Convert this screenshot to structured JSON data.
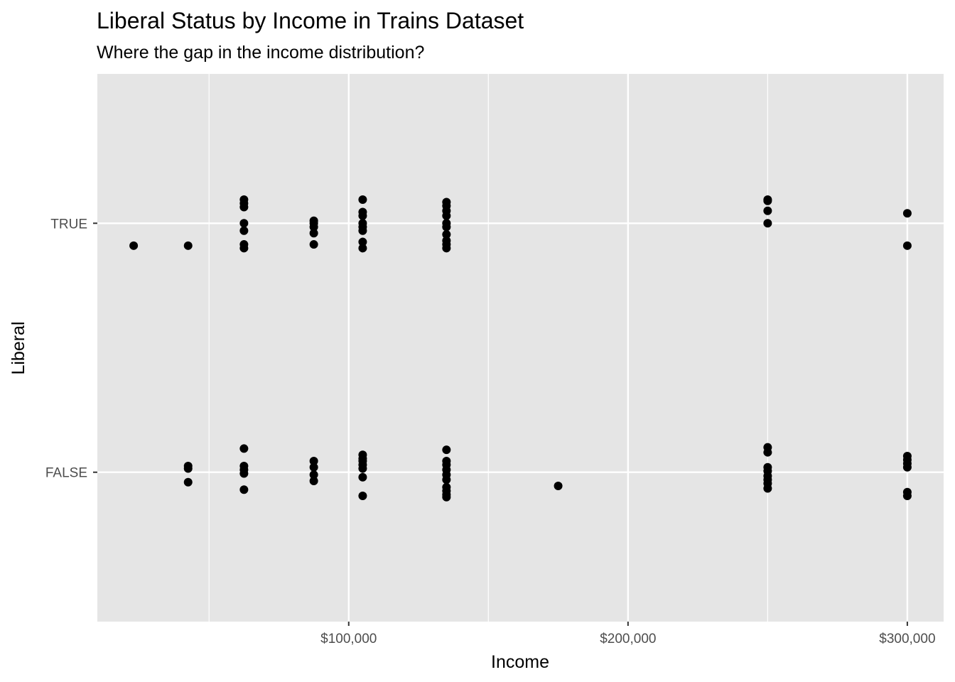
{
  "chart_data": {
    "type": "scatter",
    "title": "Liberal Status by Income in Trains Dataset",
    "subtitle": "Where the gap in the income distribution?",
    "xlabel": "Income",
    "ylabel": "Liberal",
    "xlim": [
      10000,
      313000
    ],
    "x_ticks": [
      {
        "value": 100000,
        "label": "$100,000"
      },
      {
        "value": 200000,
        "label": "$200,000"
      },
      {
        "value": 300000,
        "label": "$300,000"
      }
    ],
    "x_minor_gridlines": [
      50000,
      150000,
      250000
    ],
    "y_categories": [
      "FALSE",
      "TRUE"
    ],
    "grid": true,
    "jitter_note": "points are vertically jittered around each category",
    "points": [
      {
        "x": 23000,
        "y": "TRUE",
        "j": -0.09
      },
      {
        "x": 42500,
        "y": "TRUE",
        "j": -0.09
      },
      {
        "x": 62500,
        "y": "TRUE",
        "j": 0.095
      },
      {
        "x": 62500,
        "y": "TRUE",
        "j": 0.08
      },
      {
        "x": 62500,
        "y": "TRUE",
        "j": 0.065
      },
      {
        "x": 62500,
        "y": "TRUE",
        "j": 0.0
      },
      {
        "x": 62500,
        "y": "TRUE",
        "j": -0.03
      },
      {
        "x": 62500,
        "y": "TRUE",
        "j": -0.085
      },
      {
        "x": 62500,
        "y": "TRUE",
        "j": -0.1
      },
      {
        "x": 87500,
        "y": "TRUE",
        "j": 0.01
      },
      {
        "x": 87500,
        "y": "TRUE",
        "j": -0.015
      },
      {
        "x": 87500,
        "y": "TRUE",
        "j": -0.04
      },
      {
        "x": 87500,
        "y": "TRUE",
        "j": -0.085
      },
      {
        "x": 87500,
        "y": "TRUE",
        "j": 0.0
      },
      {
        "x": 105000,
        "y": "TRUE",
        "j": 0.095
      },
      {
        "x": 105000,
        "y": "TRUE",
        "j": 0.045
      },
      {
        "x": 105000,
        "y": "TRUE",
        "j": 0.03
      },
      {
        "x": 105000,
        "y": "TRUE",
        "j": -0.015
      },
      {
        "x": 105000,
        "y": "TRUE",
        "j": -0.03
      },
      {
        "x": 105000,
        "y": "TRUE",
        "j": -0.075
      },
      {
        "x": 105000,
        "y": "TRUE",
        "j": -0.1
      },
      {
        "x": 105000,
        "y": "TRUE",
        "j": 0.0
      },
      {
        "x": 135000,
        "y": "TRUE",
        "j": 0.085
      },
      {
        "x": 135000,
        "y": "TRUE",
        "j": 0.07
      },
      {
        "x": 135000,
        "y": "TRUE",
        "j": 0.05
      },
      {
        "x": 135000,
        "y": "TRUE",
        "j": 0.03
      },
      {
        "x": 135000,
        "y": "TRUE",
        "j": 0.0
      },
      {
        "x": 135000,
        "y": "TRUE",
        "j": -0.045
      },
      {
        "x": 135000,
        "y": "TRUE",
        "j": -0.07
      },
      {
        "x": 135000,
        "y": "TRUE",
        "j": -0.085
      },
      {
        "x": 135000,
        "y": "TRUE",
        "j": -0.1
      },
      {
        "x": 135000,
        "y": "TRUE",
        "j": -0.015
      },
      {
        "x": 250000,
        "y": "TRUE",
        "j": 0.095
      },
      {
        "x": 250000,
        "y": "TRUE",
        "j": 0.09
      },
      {
        "x": 250000,
        "y": "TRUE",
        "j": 0.05
      },
      {
        "x": 250000,
        "y": "TRUE",
        "j": 0.0
      },
      {
        "x": 300000,
        "y": "TRUE",
        "j": 0.04
      },
      {
        "x": 300000,
        "y": "TRUE",
        "j": -0.09
      },
      {
        "x": 42500,
        "y": "FALSE",
        "j": 0.025
      },
      {
        "x": 42500,
        "y": "FALSE",
        "j": 0.015
      },
      {
        "x": 42500,
        "y": "FALSE",
        "j": -0.04
      },
      {
        "x": 62500,
        "y": "FALSE",
        "j": 0.095
      },
      {
        "x": 62500,
        "y": "FALSE",
        "j": 0.025
      },
      {
        "x": 62500,
        "y": "FALSE",
        "j": 0.01
      },
      {
        "x": 62500,
        "y": "FALSE",
        "j": -0.005
      },
      {
        "x": 62500,
        "y": "FALSE",
        "j": -0.07
      },
      {
        "x": 87500,
        "y": "FALSE",
        "j": 0.045
      },
      {
        "x": 87500,
        "y": "FALSE",
        "j": 0.02
      },
      {
        "x": 87500,
        "y": "FALSE",
        "j": -0.01
      },
      {
        "x": 87500,
        "y": "FALSE",
        "j": -0.035
      },
      {
        "x": 105000,
        "y": "FALSE",
        "j": 0.07
      },
      {
        "x": 105000,
        "y": "FALSE",
        "j": 0.055
      },
      {
        "x": 105000,
        "y": "FALSE",
        "j": 0.045
      },
      {
        "x": 105000,
        "y": "FALSE",
        "j": 0.03
      },
      {
        "x": 105000,
        "y": "FALSE",
        "j": 0.015
      },
      {
        "x": 105000,
        "y": "FALSE",
        "j": -0.02
      },
      {
        "x": 105000,
        "y": "FALSE",
        "j": -0.095
      },
      {
        "x": 135000,
        "y": "FALSE",
        "j": 0.09
      },
      {
        "x": 135000,
        "y": "FALSE",
        "j": 0.045
      },
      {
        "x": 135000,
        "y": "FALSE",
        "j": 0.03
      },
      {
        "x": 135000,
        "y": "FALSE",
        "j": 0.01
      },
      {
        "x": 135000,
        "y": "FALSE",
        "j": -0.01
      },
      {
        "x": 135000,
        "y": "FALSE",
        "j": -0.03
      },
      {
        "x": 135000,
        "y": "FALSE",
        "j": -0.06
      },
      {
        "x": 135000,
        "y": "FALSE",
        "j": -0.075
      },
      {
        "x": 135000,
        "y": "FALSE",
        "j": -0.09
      },
      {
        "x": 135000,
        "y": "FALSE",
        "j": -0.1
      },
      {
        "x": 175000,
        "y": "FALSE",
        "j": -0.055
      },
      {
        "x": 250000,
        "y": "FALSE",
        "j": 0.1
      },
      {
        "x": 250000,
        "y": "FALSE",
        "j": 0.08
      },
      {
        "x": 250000,
        "y": "FALSE",
        "j": 0.02
      },
      {
        "x": 250000,
        "y": "FALSE",
        "j": 0.005
      },
      {
        "x": 250000,
        "y": "FALSE",
        "j": -0.015
      },
      {
        "x": 250000,
        "y": "FALSE",
        "j": -0.03
      },
      {
        "x": 250000,
        "y": "FALSE",
        "j": -0.045
      },
      {
        "x": 250000,
        "y": "FALSE",
        "j": -0.065
      },
      {
        "x": 300000,
        "y": "FALSE",
        "j": 0.065
      },
      {
        "x": 300000,
        "y": "FALSE",
        "j": 0.05
      },
      {
        "x": 300000,
        "y": "FALSE",
        "j": 0.035
      },
      {
        "x": 300000,
        "y": "FALSE",
        "j": 0.02
      },
      {
        "x": 300000,
        "y": "FALSE",
        "j": -0.08
      },
      {
        "x": 300000,
        "y": "FALSE",
        "j": -0.095
      }
    ]
  }
}
